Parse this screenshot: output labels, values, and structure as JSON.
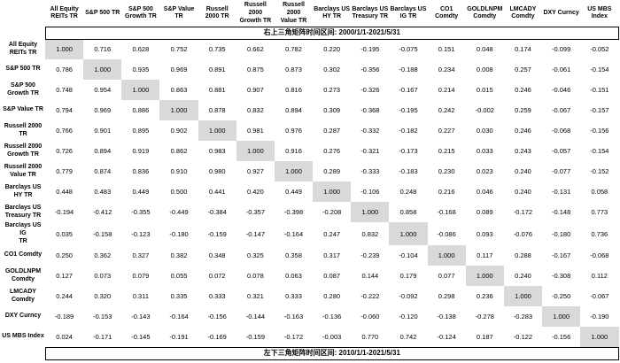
{
  "notes": {
    "top": "右上三角矩阵时间区间: 2000/1/1-2021/5/31",
    "bottom": "左下三角矩阵时间区间: 2010/1/1-2021/5/31"
  },
  "colors": {
    "background": "#ffffff",
    "text": "#000000",
    "diagonal_highlight": "#d9d9d9",
    "note_border": "#000000"
  },
  "chart_data": {
    "type": "table",
    "subtype": "correlation_matrix",
    "upper_triangle_period": "2000/1/1-2021/5/31",
    "lower_triangle_period": "2010/1/1-2021/5/31",
    "columns": [
      "All Equity\nREITs TR",
      "S&P 500 TR",
      "S&P 500\nGrowth TR",
      "S&P Value\nTR",
      "Russell\n2000 TR",
      "Russell 2000\nGrowth TR",
      "Russell 2000\nValue TR",
      "Barclays US\nHY TR",
      "Barclays US\nTreasury TR",
      "Barclays US\nIG TR",
      "CO1\nComdty",
      "GOLDLNPM\nComdty",
      "LMCADY\nComdty",
      "DXY Curncy",
      "US MBS\nIndex"
    ],
    "rows": [
      "All Equity\nREITs TR",
      "S&P 500 TR",
      "S&P 500\nGrowth TR",
      "S&P Value TR",
      "Russell 2000\nTR",
      "Russell 2000\nGrowth TR",
      "Russell 2000\nValue TR",
      "Barclays US\nHY TR",
      "Barclays US\nTreasury TR",
      "Barclays US IG\nTR",
      "CO1 Comdty",
      "GOLDLNPM\nComdty",
      "LMCADY\nComdty",
      "DXY Curncy",
      "US MBS Index"
    ],
    "matrix": [
      [
        "1.000",
        "0.716",
        "0.628",
        "0.752",
        "0.735",
        "0.662",
        "0.782",
        "0.220",
        "-0.195",
        "-0.075",
        "0.151",
        "0.048",
        "0.174",
        "-0.099",
        "-0.052"
      ],
      [
        "0.786",
        "1.000",
        "0.935",
        "0.969",
        "0.891",
        "0.875",
        "0.873",
        "0.302",
        "-0.356",
        "-0.188",
        "0.234",
        "0.008",
        "0.257",
        "-0.061",
        "-0.154"
      ],
      [
        "0.748",
        "0.954",
        "1.000",
        "0.863",
        "0.881",
        "0.907",
        "0.816",
        "0.273",
        "-0.326",
        "-0.167",
        "0.214",
        "0.015",
        "0.246",
        "-0.046",
        "-0.151"
      ],
      [
        "0.794",
        "0.969",
        "0.886",
        "1.000",
        "0.878",
        "0.832",
        "0.894",
        "0.309",
        "-0.368",
        "-0.195",
        "0.242",
        "-0.002",
        "0.259",
        "-0.067",
        "-0.157"
      ],
      [
        "0.766",
        "0.901",
        "0.895",
        "0.902",
        "1.000",
        "0.981",
        "0.976",
        "0.287",
        "-0.332",
        "-0.182",
        "0.227",
        "0.030",
        "0.246",
        "-0.068",
        "-0.156"
      ],
      [
        "0.726",
        "0.894",
        "0.919",
        "0.862",
        "0.983",
        "1.000",
        "0.916",
        "0.276",
        "-0.321",
        "-0.173",
        "0.215",
        "0.033",
        "0.243",
        "-0.057",
        "-0.154"
      ],
      [
        "0.779",
        "0.874",
        "0.836",
        "0.910",
        "0.980",
        "0.927",
        "1.000",
        "0.289",
        "-0.333",
        "-0.183",
        "0.230",
        "0.023",
        "0.240",
        "-0.077",
        "-0.152"
      ],
      [
        "0.448",
        "0.483",
        "0.449",
        "0.500",
        "0.441",
        "0.420",
        "0.449",
        "1.000",
        "-0.106",
        "0.248",
        "0.216",
        "0.046",
        "0.240",
        "-0.131",
        "0.058"
      ],
      [
        "-0.194",
        "-0.412",
        "-0.355",
        "-0.449",
        "-0.384",
        "-0.357",
        "-0.398",
        "-0.208",
        "1.000",
        "0.858",
        "-0.168",
        "0.089",
        "-0.172",
        "-0.148",
        "0.773"
      ],
      [
        "0.035",
        "-0.158",
        "-0.123",
        "-0.180",
        "-0.159",
        "-0.147",
        "-0.164",
        "0.247",
        "0.832",
        "1.000",
        "-0.086",
        "0.093",
        "-0.076",
        "-0.180",
        "0.736"
      ],
      [
        "0.250",
        "0.362",
        "0.327",
        "0.382",
        "0.348",
        "0.325",
        "0.358",
        "0.317",
        "-0.239",
        "-0.104",
        "1.000",
        "0.117",
        "0.288",
        "-0.167",
        "-0.068"
      ],
      [
        "0.127",
        "0.073",
        "0.079",
        "0.055",
        "0.072",
        "0.078",
        "0.063",
        "0.087",
        "0.144",
        "0.179",
        "0.077",
        "1.000",
        "0.240",
        "-0.308",
        "0.112"
      ],
      [
        "0.244",
        "0.320",
        "0.311",
        "0.335",
        "0.333",
        "0.321",
        "0.333",
        "0.280",
        "-0.222",
        "-0.092",
        "0.298",
        "0.236",
        "1.000",
        "-0.250",
        "-0.067"
      ],
      [
        "-0.189",
        "-0.153",
        "-0.143",
        "-0.164",
        "-0.156",
        "-0.144",
        "-0.163",
        "-0.136",
        "-0.060",
        "-0.120",
        "-0.138",
        "-0.278",
        "-0.283",
        "1.000",
        "-0.190"
      ],
      [
        "0.024",
        "-0.171",
        "-0.145",
        "-0.191",
        "-0.169",
        "-0.159",
        "-0.172",
        "-0.003",
        "0.770",
        "0.742",
        "-0.124",
        "0.187",
        "-0.122",
        "-0.156",
        "1.000"
      ]
    ],
    "diagonal_value": "1.000"
  }
}
